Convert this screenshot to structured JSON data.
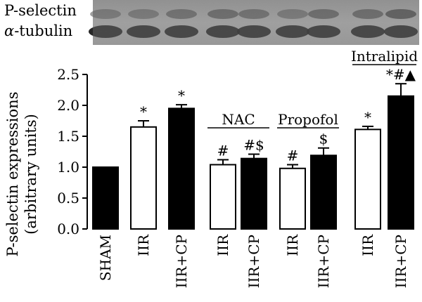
{
  "blot": {
    "rows": [
      {
        "label": "P-selectin",
        "greek": "",
        "rest": "P-selectin"
      },
      {
        "label": "α-tubulin",
        "greek": "α",
        "rest": "-tubulin"
      }
    ]
  },
  "colors": {
    "filled": "#000000",
    "open": "#ffffff",
    "stroke": "#000000"
  },
  "chart_data": {
    "type": "bar",
    "ylabel_lines": [
      "P-selectin expressions",
      "(arbitrary units)"
    ],
    "ylim": [
      0,
      2.5
    ],
    "yticks": [
      "0.0",
      "0.5",
      "1.0",
      "1.5",
      "2.0",
      "2.5"
    ],
    "categories": [
      "SHAM",
      "IIR",
      "IIR+CP",
      "IIR",
      "IIR+CP",
      "IIR",
      "IIR+CP",
      "IIR",
      "IIR+CP"
    ],
    "values": [
      1.0,
      1.65,
      1.95,
      1.04,
      1.14,
      0.98,
      1.19,
      1.61,
      2.15
    ],
    "errors": [
      0.0,
      0.1,
      0.06,
      0.08,
      0.07,
      0.06,
      0.12,
      0.05,
      0.2
    ],
    "fill": [
      "filled",
      "open",
      "filled",
      "open",
      "filled",
      "open",
      "filled",
      "open",
      "filled"
    ],
    "annotations": [
      "",
      "*",
      "*",
      "#",
      "#$",
      "#",
      "$",
      "*",
      "*#▲"
    ],
    "groups": [
      {
        "label": "NAC",
        "from": 3,
        "to": 4
      },
      {
        "label": "Propofol",
        "from": 5,
        "to": 6
      },
      {
        "label": "Intralipid",
        "from": 7,
        "to": 8
      }
    ],
    "grid": false,
    "legend": "none"
  }
}
